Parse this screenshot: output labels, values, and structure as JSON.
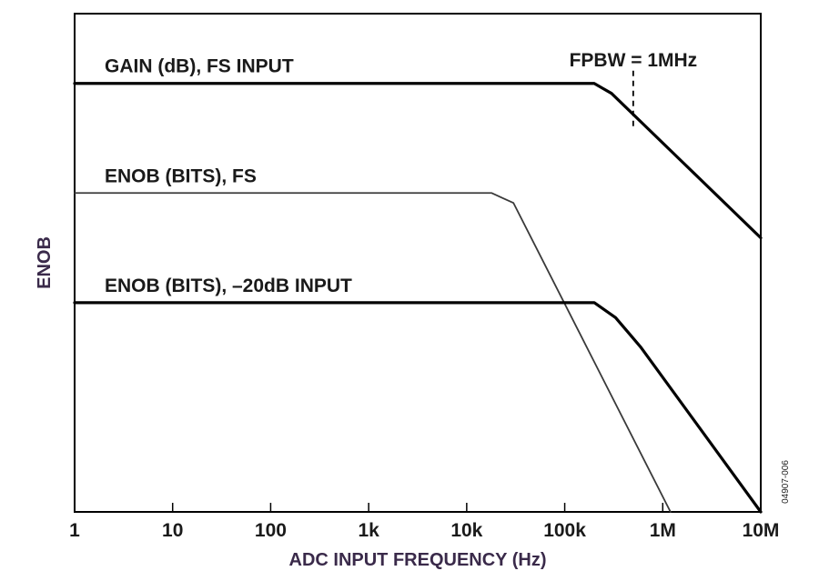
{
  "chart_data": {
    "type": "line",
    "title": "",
    "xlabel": "ADC INPUT FREQUENCY (Hz)",
    "ylabel": "ENOB",
    "x_scale": "log",
    "xlim": [
      1,
      10000000
    ],
    "y_ticks_shown": false,
    "grid": false,
    "x_ticks": [
      {
        "value": 1,
        "label": "1"
      },
      {
        "value": 10,
        "label": "10"
      },
      {
        "value": 100,
        "label": "100"
      },
      {
        "value": 1000,
        "label": "1k"
      },
      {
        "value": 10000,
        "label": "10k"
      },
      {
        "value": 100000,
        "label": "100k"
      },
      {
        "value": 1000000,
        "label": "1M"
      },
      {
        "value": 10000000,
        "label": "10M"
      }
    ],
    "series": [
      {
        "name": "GAIN (dB), FS INPUT",
        "color": "#000000",
        "stroke": "thick",
        "points": [
          [
            1,
            0.86
          ],
          [
            200000,
            0.86
          ],
          [
            300000,
            0.84
          ],
          [
            10000000,
            0.55
          ]
        ]
      },
      {
        "name": "ENOB (BITS), FS",
        "color": "#3a3a3a",
        "stroke": "thin",
        "points": [
          [
            1,
            0.64
          ],
          [
            18000,
            0.64
          ],
          [
            30000,
            0.62
          ],
          [
            1200000,
            0.0
          ]
        ]
      },
      {
        "name": "ENOB (BITS), –20dB INPUT",
        "color": "#000000",
        "stroke": "thick",
        "points": [
          [
            1,
            0.42
          ],
          [
            200000,
            0.42
          ],
          [
            330000,
            0.39
          ],
          [
            600000,
            0.33
          ],
          [
            10000000,
            0.0
          ]
        ]
      }
    ],
    "annotations": [
      {
        "text": "FPBW = 1MHz",
        "x": 500000,
        "style": "dashed-vertical-marker",
        "y_range": [
          0.73,
          0.86
        ]
      }
    ]
  },
  "figure_id": "04907-006"
}
